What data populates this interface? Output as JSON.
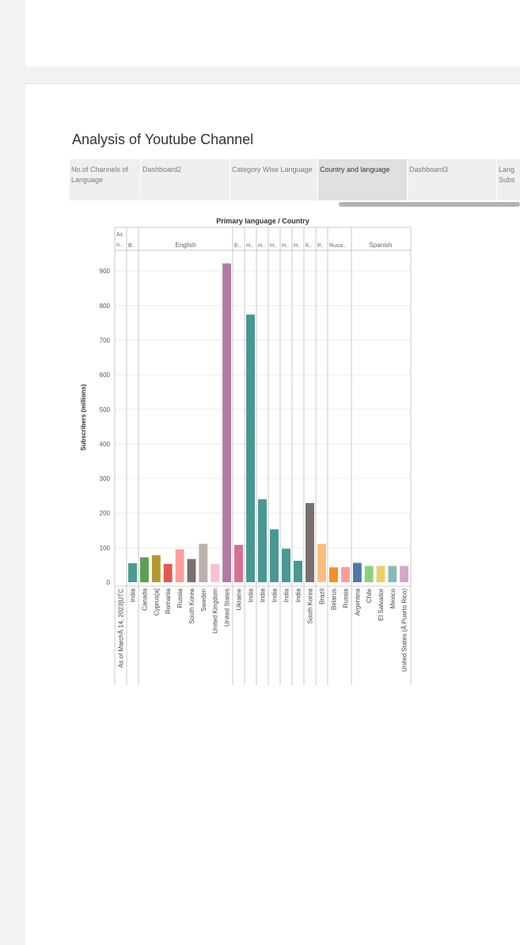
{
  "dashboard": {
    "title": "Analysis of Youtube Channel",
    "tabs": [
      {
        "label": "No.of Channels of Language",
        "active": false
      },
      {
        "label": "Dashboard2",
        "active": false
      },
      {
        "label": "Category Wise Language",
        "active": false
      },
      {
        "label": "Country and language",
        "active": true
      },
      {
        "label": "Dashboard3",
        "active": false
      },
      {
        "label": "Lang Subs",
        "active": false
      }
    ]
  },
  "chart_data": {
    "type": "bar",
    "title": "Primary language / Country",
    "ylabel": "Subscribers (millions)",
    "ylim": [
      0,
      950
    ],
    "yticks": [
      0,
      100,
      200,
      300,
      400,
      500,
      600,
      700,
      800,
      900
    ],
    "grid": true,
    "groups": [
      {
        "label": "As o..",
        "bars": [
          {
            "country": "As of MarchÂ 14, 2023[UTC",
            "value": 0,
            "color": "#ffffff"
          }
        ]
      },
      {
        "label": "B..",
        "bars": [
          {
            "country": "India",
            "value": 55,
            "color": "#4e9a8e"
          }
        ]
      },
      {
        "label": "English",
        "bars": [
          {
            "country": "Canada",
            "value": 72,
            "color": "#59a14f"
          },
          {
            "country": "Cyprus[a]",
            "value": 78,
            "color": "#b6992d"
          },
          {
            "country": "Romania",
            "value": 53,
            "color": "#e15759"
          },
          {
            "country": "Russia",
            "value": 95,
            "color": "#ff9d9a"
          },
          {
            "country": "South Korea",
            "value": 67,
            "color": "#79706e"
          },
          {
            "country": "Sweden",
            "value": 111,
            "color": "#bab0ac"
          },
          {
            "country": "United Kingdom",
            "value": 53,
            "color": "#fabfd2"
          },
          {
            "country": "United States",
            "value": 922,
            "color": "#b07aa1"
          }
        ]
      },
      {
        "label": "E..",
        "bars": [
          {
            "country": "Ukraine",
            "value": 108,
            "color": "#d37295"
          }
        ]
      },
      {
        "label": "H..",
        "bars": [
          {
            "country": "India",
            "value": 774,
            "color": "#499894"
          }
        ]
      },
      {
        "label": "H..",
        "bars": [
          {
            "country": "India",
            "value": 240,
            "color": "#499894"
          }
        ]
      },
      {
        "label": "H..",
        "bars": [
          {
            "country": "India",
            "value": 153,
            "color": "#499894"
          }
        ]
      },
      {
        "label": "H..",
        "bars": [
          {
            "country": "India",
            "value": 97,
            "color": "#499894"
          }
        ]
      },
      {
        "label": "H..",
        "bars": [
          {
            "country": "India",
            "value": 62,
            "color": "#499894"
          }
        ]
      },
      {
        "label": "K..",
        "bars": [
          {
            "country": "South Korea",
            "value": 229,
            "color": "#79706e"
          }
        ]
      },
      {
        "label": "P..",
        "bars": [
          {
            "country": "Brazil",
            "value": 111,
            "color": "#ffbe7d"
          }
        ]
      },
      {
        "label": "Russi..",
        "bars": [
          {
            "country": "Belarus",
            "value": 43,
            "color": "#f28e2b"
          },
          {
            "country": "Russia",
            "value": 44,
            "color": "#ff9d9a"
          }
        ]
      },
      {
        "label": "Spanish",
        "bars": [
          {
            "country": "Argentina",
            "value": 56,
            "color": "#4e79a7"
          },
          {
            "country": "Chile",
            "value": 47,
            "color": "#8cd17d"
          },
          {
            "country": "El Salvador",
            "value": 47,
            "color": "#f1ce63"
          },
          {
            "country": "Mexico",
            "value": 47,
            "color": "#86bcb6"
          },
          {
            "country": "United States (Â Puerto Rico)",
            "value": 47,
            "color": "#d4a6c8"
          }
        ]
      }
    ]
  }
}
